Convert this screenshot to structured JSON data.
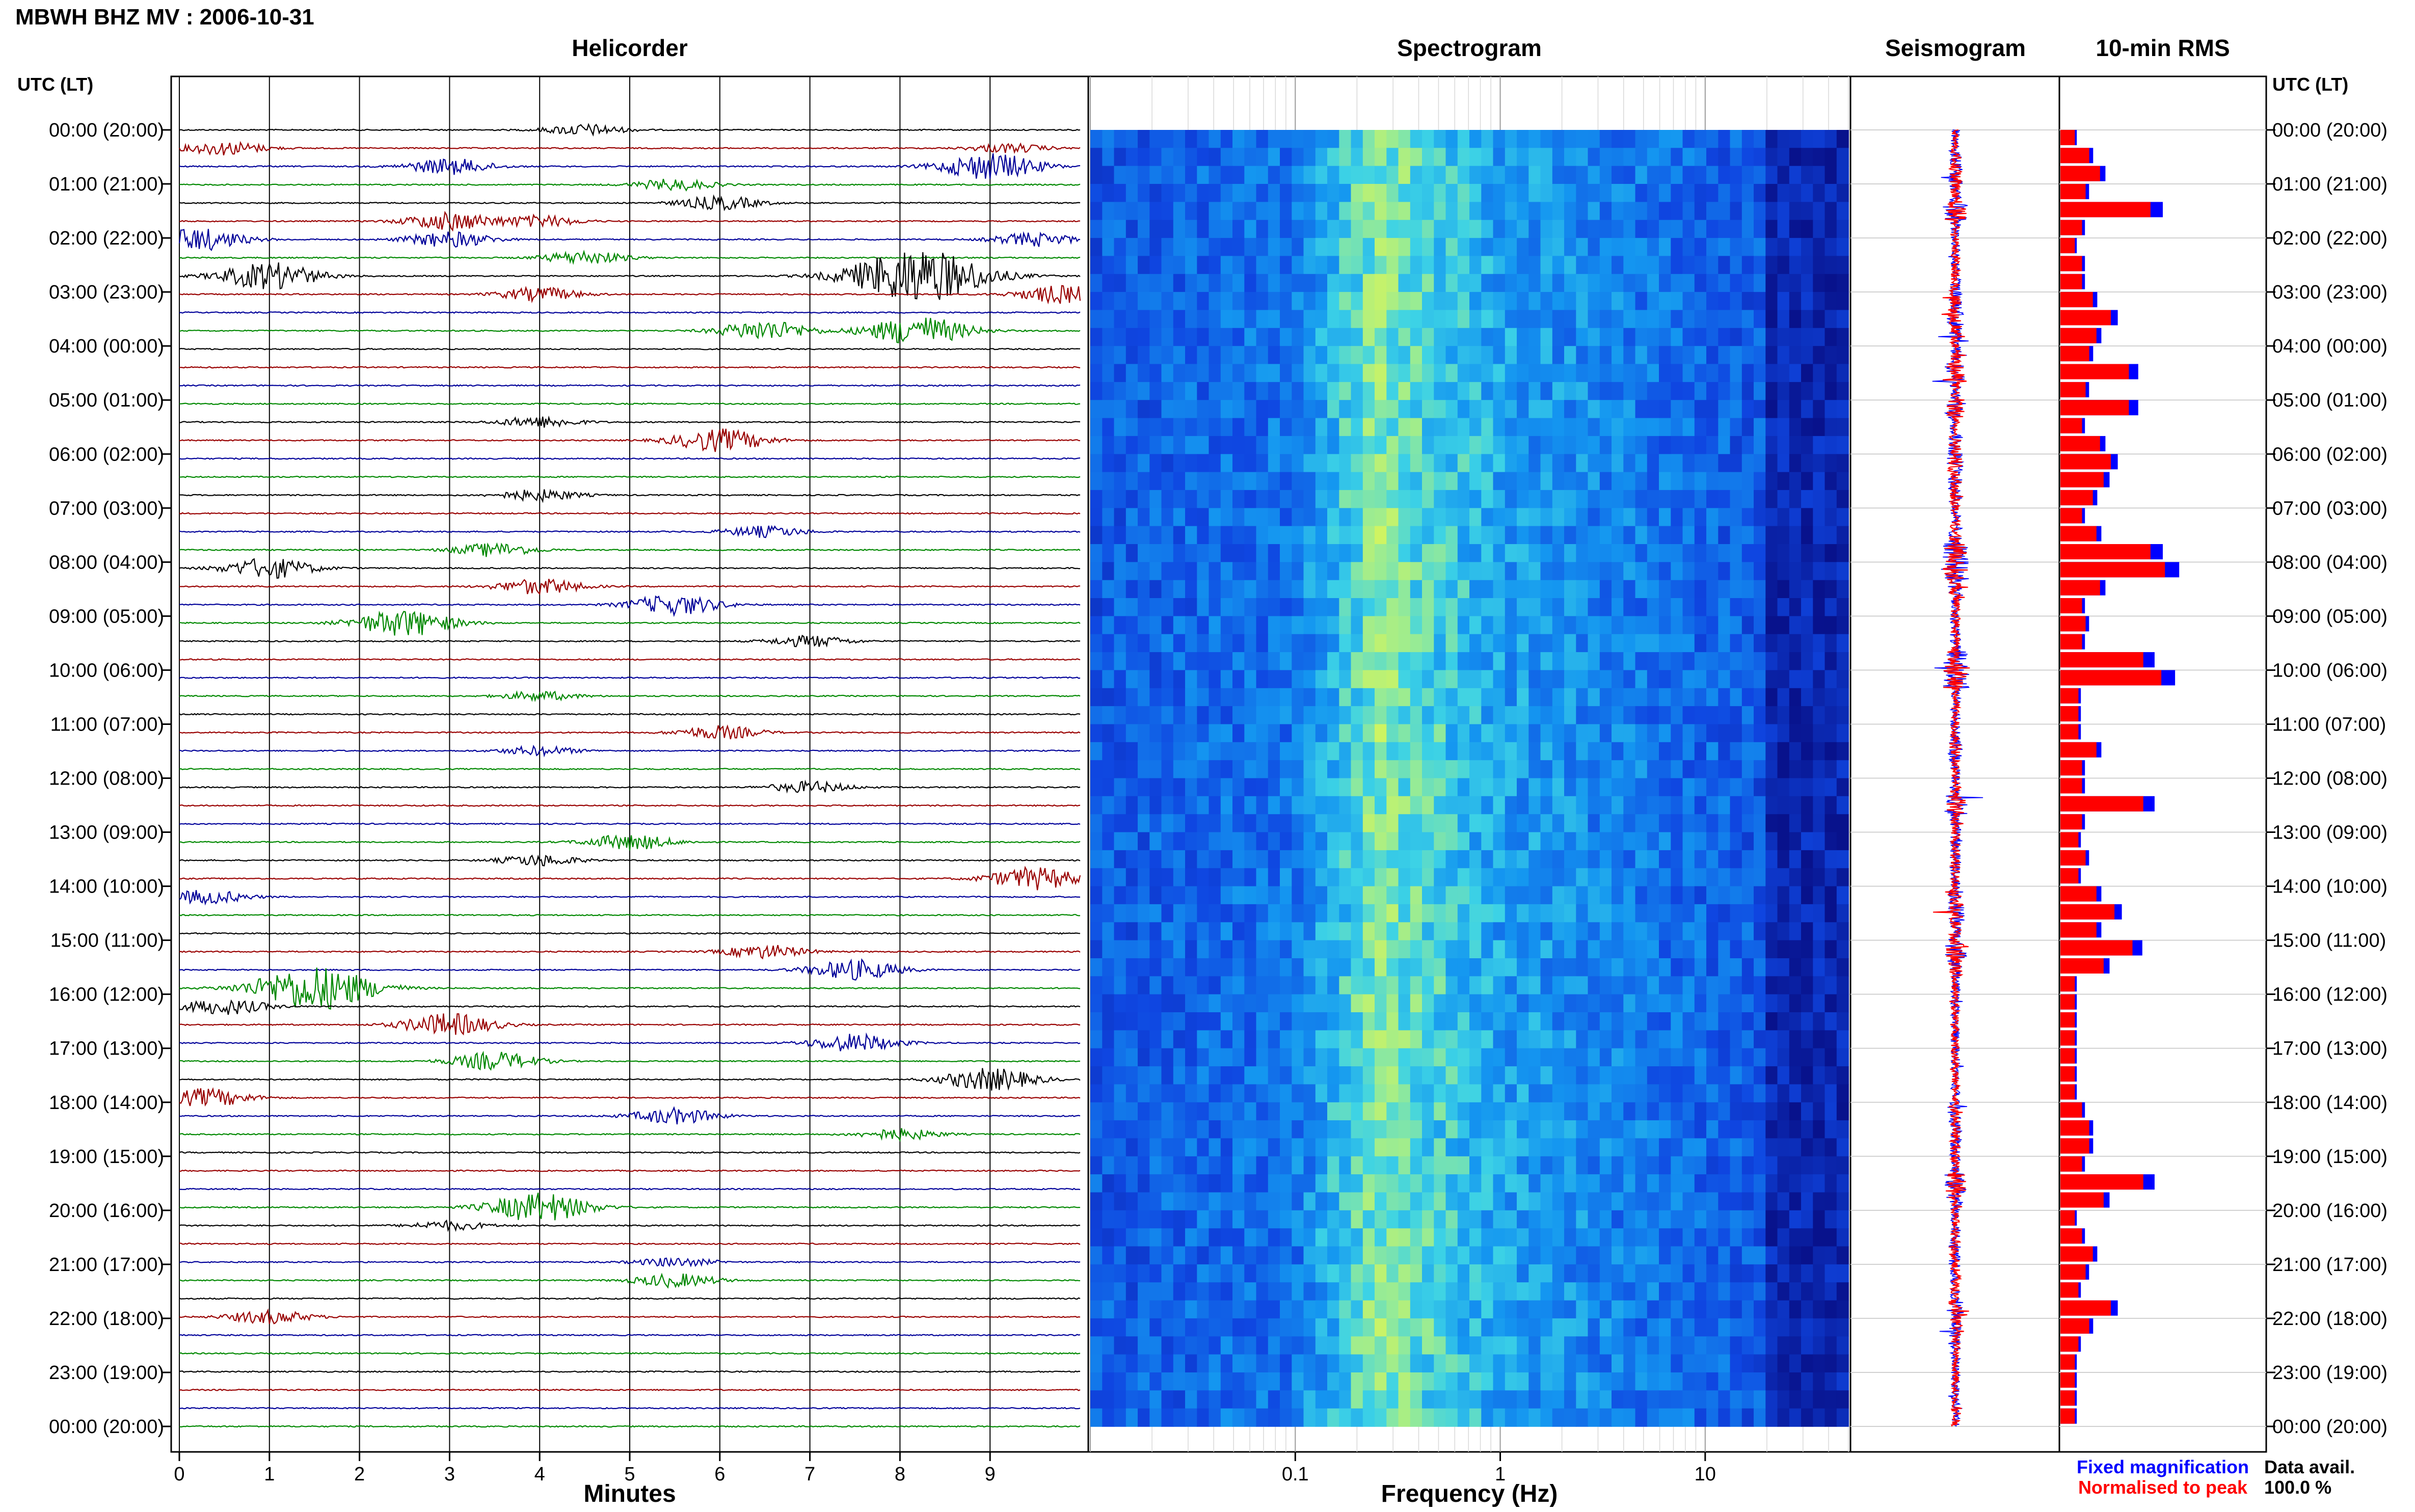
{
  "header": {
    "title": "MBWH BHZ MV : 2006-10-31",
    "utc_label": "UTC (LT)",
    "utc_label_right": "UTC (LT)"
  },
  "panels": {
    "helicorder": "Helicorder",
    "spectrogram": "Spectrogram",
    "seismogram": "Seismogram",
    "rms": "10-min RMS"
  },
  "time_labels": [
    "00:00 (20:00)",
    "01:00 (21:00)",
    "02:00 (22:00)",
    "03:00 (23:00)",
    "04:00 (00:00)",
    "05:00 (01:00)",
    "06:00 (02:00)",
    "07:00 (03:00)",
    "08:00 (04:00)",
    "09:00 (05:00)",
    "10:00 (06:00)",
    "11:00 (07:00)",
    "12:00 (08:00)",
    "13:00 (09:00)",
    "14:00 (10:00)",
    "15:00 (11:00)",
    "16:00 (12:00)",
    "17:00 (13:00)",
    "18:00 (14:00)",
    "19:00 (15:00)",
    "20:00 (16:00)",
    "21:00 (17:00)",
    "22:00 (18:00)",
    "23:00 (19:00)",
    "00:00 (20:00)"
  ],
  "footer": {
    "xlabel_helicorder": "Minutes",
    "xlabel_spectrogram": "Frequency (Hz)",
    "legend_fixed": "Fixed magnification",
    "legend_norm": "Normalised to peak",
    "avail_label": "Data avail.",
    "avail_value": "100.0 %"
  },
  "colors": {
    "trace_cycle": [
      "#000000",
      "#990000",
      "#000099",
      "#008800"
    ],
    "fixed": "#0000ff",
    "norm": "#ff0000"
  },
  "chart_data": [
    {
      "type": "line",
      "name": "helicorder",
      "x_ticks": [
        "0",
        "1",
        "2",
        "3",
        "4",
        "5",
        "6",
        "7",
        "8",
        "9"
      ],
      "xlim": [
        0,
        10
      ],
      "rows": 72,
      "row_minutes": 20,
      "events": [
        {
          "row": 0,
          "minute": 4.5,
          "amp": 0.5
        },
        {
          "row": 1,
          "minute": 0.5,
          "amp": 0.6
        },
        {
          "row": 1,
          "minute": 9.2,
          "amp": 0.4
        },
        {
          "row": 2,
          "minute": 3.0,
          "amp": 0.7
        },
        {
          "row": 2,
          "minute": 9.0,
          "amp": 1.2
        },
        {
          "row": 3,
          "minute": 5.5,
          "amp": 0.5
        },
        {
          "row": 4,
          "minute": 6.0,
          "amp": 0.6
        },
        {
          "row": 5,
          "minute": 3.0,
          "amp": 0.8
        },
        {
          "row": 5,
          "minute": 4.0,
          "amp": 0.5
        },
        {
          "row": 6,
          "minute": 0.2,
          "amp": 1.0
        },
        {
          "row": 6,
          "minute": 3.0,
          "amp": 0.7
        },
        {
          "row": 6,
          "minute": 9.5,
          "amp": 0.6
        },
        {
          "row": 7,
          "minute": 4.5,
          "amp": 0.6
        },
        {
          "row": 8,
          "minute": 1.0,
          "amp": 1.2
        },
        {
          "row": 8,
          "minute": 8.2,
          "amp": 2.5
        },
        {
          "row": 9,
          "minute": 4.0,
          "amp": 0.6
        },
        {
          "row": 9,
          "minute": 9.8,
          "amp": 0.8
        },
        {
          "row": 11,
          "minute": 6.5,
          "amp": 0.9
        },
        {
          "row": 11,
          "minute": 8.2,
          "amp": 1.3
        },
        {
          "row": 16,
          "minute": 4.0,
          "amp": 0.5
        },
        {
          "row": 17,
          "minute": 6.0,
          "amp": 1.0
        },
        {
          "row": 20,
          "minute": 4.0,
          "amp": 0.5
        },
        {
          "row": 22,
          "minute": 6.5,
          "amp": 0.5
        },
        {
          "row": 23,
          "minute": 3.5,
          "amp": 0.6
        },
        {
          "row": 24,
          "minute": 1.0,
          "amp": 0.9
        },
        {
          "row": 25,
          "minute": 4.0,
          "amp": 0.7
        },
        {
          "row": 26,
          "minute": 5.5,
          "amp": 0.9
        },
        {
          "row": 27,
          "minute": 2.5,
          "amp": 1.2
        },
        {
          "row": 28,
          "minute": 7.0,
          "amp": 0.5
        },
        {
          "row": 31,
          "minute": 4.0,
          "amp": 0.4
        },
        {
          "row": 33,
          "minute": 6.0,
          "amp": 0.6
        },
        {
          "row": 34,
          "minute": 4.0,
          "amp": 0.4
        },
        {
          "row": 36,
          "minute": 7.0,
          "amp": 0.5
        },
        {
          "row": 39,
          "minute": 5.0,
          "amp": 0.7
        },
        {
          "row": 40,
          "minute": 4.0,
          "amp": 0.5
        },
        {
          "row": 41,
          "minute": 9.5,
          "amp": 1.0
        },
        {
          "row": 42,
          "minute": 0.3,
          "amp": 0.6
        },
        {
          "row": 45,
          "minute": 6.5,
          "amp": 0.6
        },
        {
          "row": 46,
          "minute": 7.5,
          "amp": 0.9
        },
        {
          "row": 47,
          "minute": 1.5,
          "amp": 2.0
        },
        {
          "row": 48,
          "minute": 0.5,
          "amp": 0.7
        },
        {
          "row": 49,
          "minute": 3.0,
          "amp": 1.0
        },
        {
          "row": 50,
          "minute": 7.5,
          "amp": 0.8
        },
        {
          "row": 51,
          "minute": 3.5,
          "amp": 0.8
        },
        {
          "row": 52,
          "minute": 9.0,
          "amp": 1.0
        },
        {
          "row": 53,
          "minute": 0.3,
          "amp": 0.8
        },
        {
          "row": 54,
          "minute": 5.5,
          "amp": 0.7
        },
        {
          "row": 55,
          "minute": 8.0,
          "amp": 0.5
        },
        {
          "row": 59,
          "minute": 4.0,
          "amp": 1.3
        },
        {
          "row": 60,
          "minute": 3.0,
          "amp": 0.4
        },
        {
          "row": 62,
          "minute": 5.5,
          "amp": 0.4
        },
        {
          "row": 63,
          "minute": 5.5,
          "amp": 0.6
        },
        {
          "row": 65,
          "minute": 1.0,
          "amp": 0.6
        }
      ]
    },
    {
      "type": "heatmap",
      "name": "spectrogram",
      "x_scale": "log",
      "x_ticks": [
        "0.1",
        "1",
        "10"
      ],
      "xlim": [
        0.01,
        50
      ],
      "rows": 72
    },
    {
      "type": "line",
      "name": "seismogram",
      "rows": 72
    },
    {
      "type": "bar",
      "name": "rms",
      "series": [
        {
          "name": "Fixed magnification",
          "values": [
            0.08,
            0.16,
            0.22,
            0.14,
            0.5,
            0.12,
            0.08,
            0.12,
            0.12,
            0.18,
            0.28,
            0.2,
            0.16,
            0.38,
            0.14,
            0.38,
            0.12,
            0.22,
            0.28,
            0.24,
            0.18,
            0.12,
            0.2,
            0.5,
            0.58,
            0.22,
            0.12,
            0.14,
            0.12,
            0.46,
            0.56,
            0.1,
            0.1,
            0.1,
            0.2,
            0.12,
            0.12,
            0.46,
            0.12,
            0.1,
            0.14,
            0.1,
            0.2,
            0.3,
            0.2,
            0.4,
            0.24,
            0.08,
            0.08,
            0.08,
            0.08,
            0.08,
            0.08,
            0.08,
            0.12,
            0.16,
            0.16,
            0.12,
            0.46,
            0.24,
            0.08,
            0.12,
            0.18,
            0.14,
            0.1,
            0.28,
            0.16,
            0.1,
            0.08,
            0.08,
            0.08,
            0.08
          ]
        },
        {
          "name": "Normalised to peak",
          "values": [
            0.08,
            0.16,
            0.22,
            0.14,
            0.5,
            0.12,
            0.08,
            0.12,
            0.12,
            0.18,
            0.28,
            0.2,
            0.16,
            0.38,
            0.14,
            0.38,
            0.12,
            0.22,
            0.28,
            0.24,
            0.18,
            0.12,
            0.2,
            0.5,
            0.58,
            0.22,
            0.12,
            0.14,
            0.12,
            0.46,
            0.56,
            0.1,
            0.1,
            0.1,
            0.2,
            0.12,
            0.12,
            0.46,
            0.12,
            0.1,
            0.14,
            0.1,
            0.2,
            0.3,
            0.2,
            0.4,
            0.24,
            0.08,
            0.08,
            0.08,
            0.08,
            0.08,
            0.08,
            0.08,
            0.12,
            0.16,
            0.16,
            0.12,
            0.46,
            0.24,
            0.08,
            0.12,
            0.18,
            0.14,
            0.1,
            0.28,
            0.16,
            0.1,
            0.08,
            0.08,
            0.08,
            0.08
          ]
        }
      ]
    }
  ]
}
